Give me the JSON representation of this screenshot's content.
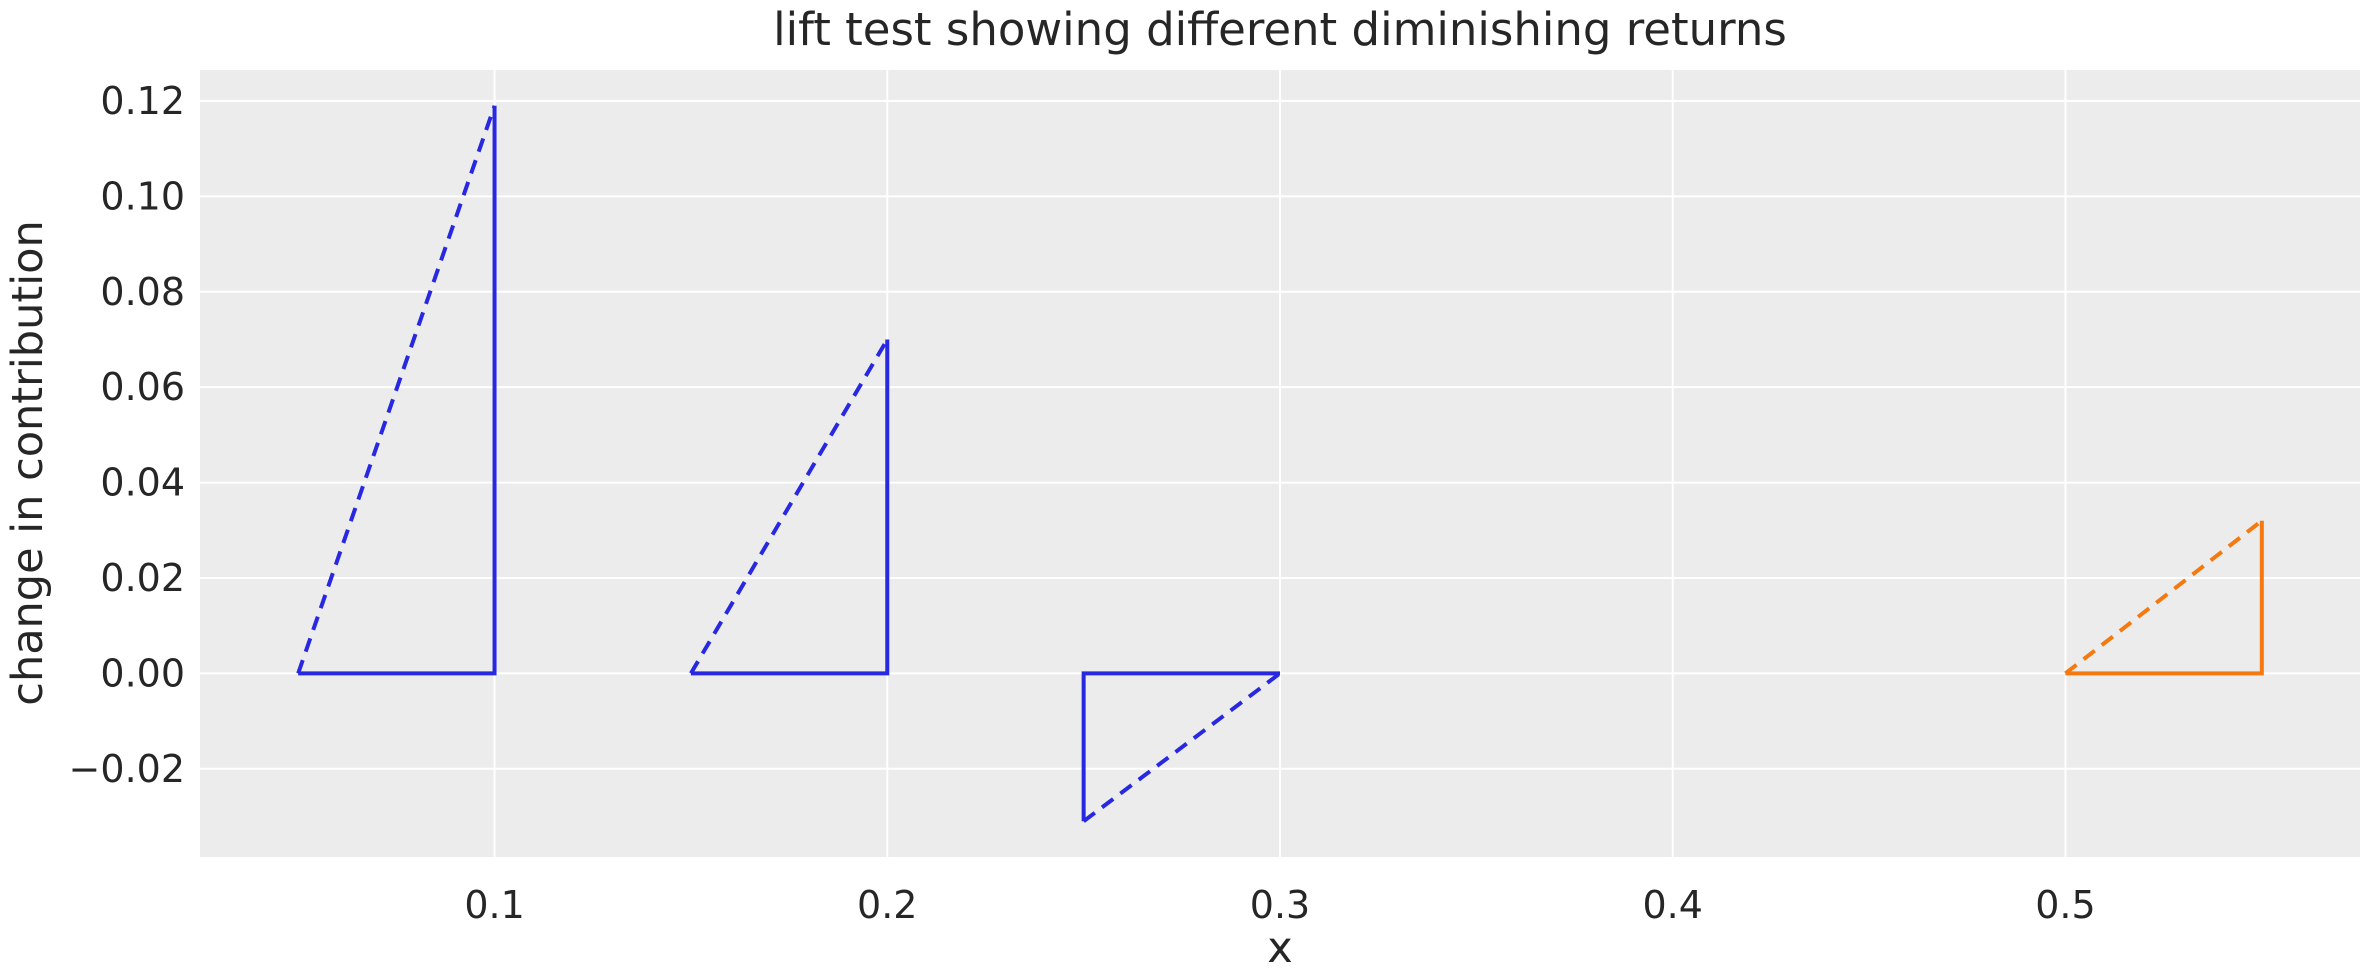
{
  "chart_data": {
    "type": "line",
    "title": "lift test showing different diminishing returns",
    "xlabel": "x",
    "ylabel": "change in contribution",
    "xlim": [
      0.025,
      0.575
    ],
    "ylim": [
      -0.0385,
      0.1265
    ],
    "grid": true,
    "legend": false,
    "xticks": [
      0.1,
      0.2,
      0.3,
      0.4,
      0.5
    ],
    "xtick_labels": [
      "0.1",
      "0.2",
      "0.3",
      "0.4",
      "0.5"
    ],
    "yticks": [
      -0.02,
      0.0,
      0.02,
      0.04,
      0.06,
      0.08,
      0.1,
      0.12
    ],
    "ytick_labels": [
      "−0.02",
      "0.00",
      "0.02",
      "0.04",
      "0.06",
      "0.08",
      "0.10",
      "0.12"
    ],
    "triangles": [
      {
        "name": "lift-triangle-1",
        "color": "#2828e1",
        "x_start": 0.05,
        "x_end": 0.1,
        "lift": 0.119,
        "solid": [
          [
            0.05,
            0
          ],
          [
            0.1,
            0
          ],
          [
            0.1,
            0.119
          ]
        ],
        "dashed": [
          [
            0.05,
            0
          ],
          [
            0.1,
            0.119
          ]
        ]
      },
      {
        "name": "lift-triangle-2",
        "color": "#2828e1",
        "x_start": 0.15,
        "x_end": 0.2,
        "lift": 0.07,
        "solid": [
          [
            0.15,
            0
          ],
          [
            0.2,
            0
          ],
          [
            0.2,
            0.07
          ]
        ],
        "dashed": [
          [
            0.15,
            0
          ],
          [
            0.2,
            0.07
          ]
        ]
      },
      {
        "name": "lift-triangle-3",
        "color": "#2828e1",
        "x_start": 0.25,
        "x_end": 0.3,
        "lift": -0.031,
        "solid": [
          [
            0.25,
            -0.031
          ],
          [
            0.25,
            0
          ],
          [
            0.3,
            0
          ]
        ],
        "dashed": [
          [
            0.25,
            -0.031
          ],
          [
            0.3,
            0
          ]
        ]
      },
      {
        "name": "lift-triangle-4",
        "color": "#f5790f",
        "x_start": 0.5,
        "x_end": 0.55,
        "lift": 0.032,
        "solid": [
          [
            0.5,
            0
          ],
          [
            0.55,
            0
          ],
          [
            0.55,
            0.032
          ]
        ],
        "dashed": [
          [
            0.5,
            0
          ],
          [
            0.55,
            0.032
          ]
        ]
      }
    ],
    "colors": {
      "plot_bg": "#ececec",
      "grid": "#ffffff",
      "text": "#262626",
      "blue_series": "#2828e1",
      "orange_series": "#f5790f"
    }
  }
}
